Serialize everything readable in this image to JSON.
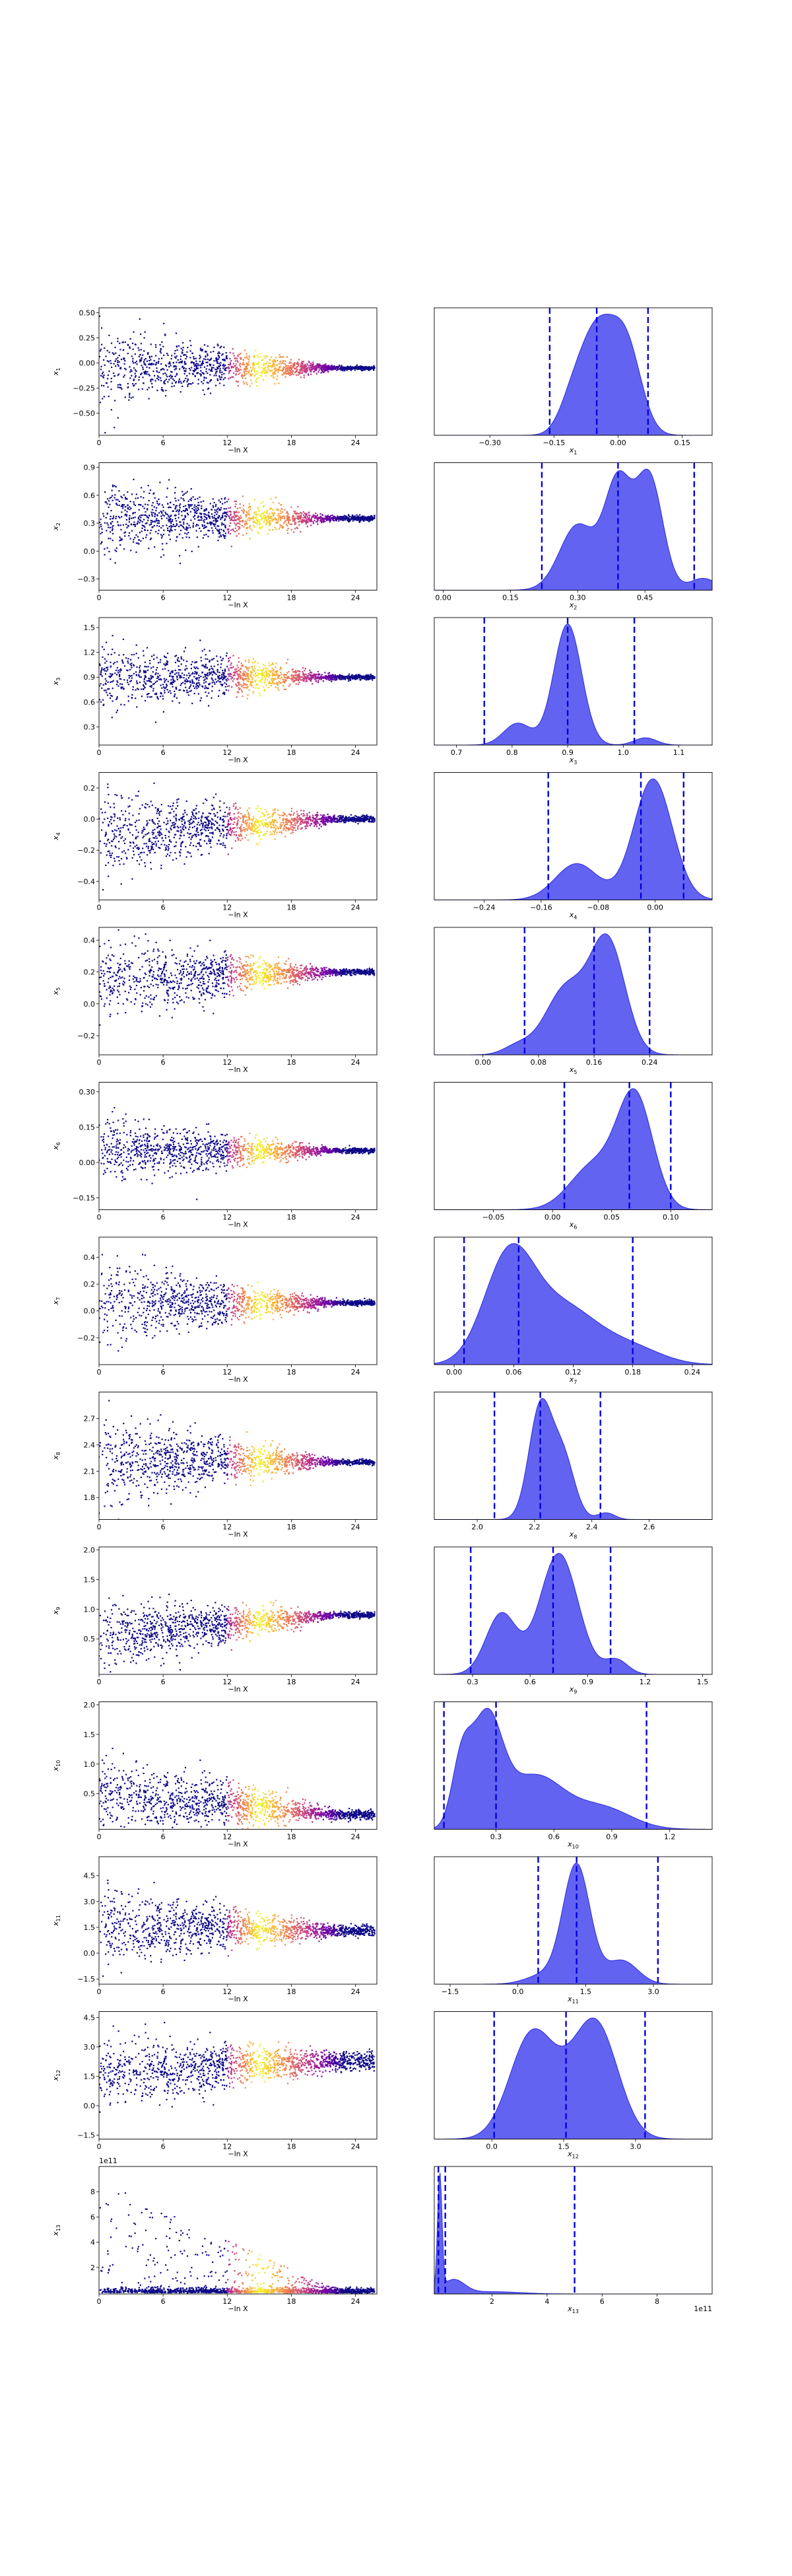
{
  "figure": {
    "scatter_xlabel": "−ln X",
    "colormap": [
      "#0d0887",
      "#6a00a8",
      "#b12a90",
      "#e16462",
      "#fca636",
      "#f0f921"
    ],
    "density_color": "#5b5bf0",
    "density_edge": "#2a2ae0",
    "quantile_color": "#0000dd"
  },
  "chart_data": [
    {
      "type": "scatter+density",
      "param": "x1",
      "ylabel_sub": "1",
      "xlabel_sub": "1",
      "scatter": {
        "xlim": [
          0,
          26
        ],
        "ylim": [
          -0.72,
          0.55
        ],
        "xticks": [
          "0",
          "6",
          "12",
          "18",
          "24"
        ],
        "yticks": [
          0.5,
          0.25,
          0.0,
          -0.25,
          -0.5
        ],
        "ytick_labels": [
          "0.50",
          "0.25",
          "0.00",
          "−0.25",
          "−0.50"
        ],
        "center": -0.05,
        "spread_start": 0.38,
        "spread_end": 0.02,
        "bias_start": 0.0
      },
      "density": {
        "xlim": [
          -0.43,
          0.22
        ],
        "xticks": [
          -0.3,
          -0.15,
          0.0,
          0.15
        ],
        "xtick_labels": [
          "−0.30",
          "−0.15",
          "0.00",
          "0.15"
        ],
        "components": [
          [
            -0.05,
            0.04,
            1.0
          ],
          [
            0.02,
            0.035,
            0.82
          ],
          [
            -0.11,
            0.03,
            0.25
          ]
        ],
        "quantiles": [
          -0.16,
          -0.05,
          0.07
        ]
      }
    },
    {
      "type": "scatter+density",
      "param": "x2",
      "ylabel_sub": "2",
      "xlabel_sub": "2",
      "scatter": {
        "xlim": [
          0,
          26
        ],
        "ylim": [
          -0.42,
          0.95
        ],
        "xticks": [
          "0",
          "6",
          "12",
          "18",
          "24"
        ],
        "yticks": [
          0.9,
          0.6,
          0.3,
          0.0,
          -0.3
        ],
        "ytick_labels": [
          "0.9",
          "0.6",
          "0.3",
          "0.0",
          "−0.3"
        ],
        "center": 0.35,
        "spread_start": 0.42,
        "spread_end": 0.03,
        "bias_start": 0.0
      },
      "density": {
        "xlim": [
          -0.02,
          0.6
        ],
        "xticks": [
          0.0,
          0.15,
          0.3,
          0.45
        ],
        "xtick_labels": [
          "0.00",
          "0.15",
          "0.30",
          "0.45"
        ],
        "components": [
          [
            0.3,
            0.04,
            0.55
          ],
          [
            0.39,
            0.03,
            0.9
          ],
          [
            0.46,
            0.03,
            0.95
          ],
          [
            0.58,
            0.03,
            0.1
          ]
        ],
        "quantiles": [
          0.22,
          0.39,
          0.56
        ]
      }
    },
    {
      "type": "scatter+density",
      "param": "x3",
      "ylabel_sub": "3",
      "xlabel_sub": "3",
      "scatter": {
        "xlim": [
          0,
          26
        ],
        "ylim": [
          0.08,
          1.62
        ],
        "xticks": [
          "0",
          "6",
          "12",
          "18",
          "24"
        ],
        "yticks": [
          1.5,
          1.2,
          0.9,
          0.6,
          0.3
        ],
        "ytick_labels": [
          "1.5",
          "1.2",
          "0.9",
          "0.6",
          "0.3"
        ],
        "center": 0.9,
        "spread_start": 0.45,
        "spread_end": 0.03,
        "bias_start": 0.0
      },
      "density": {
        "xlim": [
          0.66,
          1.16
        ],
        "xticks": [
          0.7,
          0.8,
          0.9,
          1.0,
          1.1
        ],
        "xtick_labels": [
          "0.7",
          "0.8",
          "0.9",
          "1.0",
          "1.1"
        ],
        "components": [
          [
            0.9,
            0.025,
            1.0
          ],
          [
            0.81,
            0.025,
            0.18
          ],
          [
            1.04,
            0.02,
            0.06
          ]
        ],
        "quantiles": [
          0.75,
          0.9,
          1.02
        ]
      }
    },
    {
      "type": "scatter+density",
      "param": "x4",
      "ylabel_sub": "4",
      "xlabel_sub": "4",
      "scatter": {
        "xlim": [
          0,
          26
        ],
        "ylim": [
          -0.52,
          0.3
        ],
        "xticks": [
          "0",
          "6",
          "12",
          "18",
          "24"
        ],
        "yticks": [
          0.2,
          0.0,
          -0.2,
          -0.4
        ],
        "ytick_labels": [
          "0.2",
          "0.0",
          "−0.2",
          "−0.4"
        ],
        "center": 0.0,
        "spread_start": 0.28,
        "spread_end": 0.02,
        "bias_start": -0.1
      },
      "density": {
        "xlim": [
          -0.31,
          0.08
        ],
        "xticks": [
          -0.24,
          -0.16,
          -0.08,
          0.0
        ],
        "xtick_labels": [
          "−0.24",
          "−0.16",
          "−0.08",
          "0.00"
        ],
        "components": [
          [
            -0.003,
            0.027,
            1.0
          ],
          [
            -0.11,
            0.03,
            0.3
          ]
        ],
        "quantiles": [
          -0.15,
          -0.02,
          0.04
        ]
      }
    },
    {
      "type": "scatter+density",
      "param": "x5",
      "ylabel_sub": "5",
      "xlabel_sub": "5",
      "scatter": {
        "xlim": [
          0,
          26
        ],
        "ylim": [
          -0.32,
          0.48
        ],
        "xticks": [
          "0",
          "6",
          "12",
          "18",
          "24"
        ],
        "yticks": [
          0.4,
          0.2,
          0.0,
          -0.2
        ],
        "ytick_labels": [
          "0.4",
          "0.2",
          "0.0",
          "−0.2"
        ],
        "center": 0.2,
        "spread_start": 0.25,
        "spread_end": 0.02,
        "bias_start": -0.05
      },
      "density": {
        "xlim": [
          -0.07,
          0.33
        ],
        "xticks": [
          0.0,
          0.08,
          0.16,
          0.24
        ],
        "xtick_labels": [
          "0.00",
          "0.08",
          "0.16",
          "0.24"
        ],
        "components": [
          [
            0.18,
            0.025,
            1.0
          ],
          [
            0.12,
            0.03,
            0.6
          ],
          [
            0.05,
            0.02,
            0.08
          ]
        ],
        "quantiles": [
          0.06,
          0.16,
          0.24
        ]
      }
    },
    {
      "type": "scatter+density",
      "param": "x6",
      "ylabel_sub": "6",
      "xlabel_sub": "6",
      "scatter": {
        "xlim": [
          0,
          26
        ],
        "ylim": [
          -0.2,
          0.34
        ],
        "xticks": [
          "0",
          "6",
          "12",
          "18",
          "24"
        ],
        "yticks": [
          0.3,
          0.15,
          0.0,
          -0.15
        ],
        "ytick_labels": [
          "0.30",
          "0.15",
          "0.00",
          "−0.15"
        ],
        "center": 0.05,
        "spread_start": 0.14,
        "spread_end": 0.01,
        "bias_start": 0.0
      },
      "density": {
        "xlim": [
          -0.1,
          0.135
        ],
        "xticks": [
          -0.05,
          0.0,
          0.05,
          0.1
        ],
        "xtick_labels": [
          "−0.05",
          "0.00",
          "0.05",
          "0.10"
        ],
        "components": [
          [
            0.07,
            0.015,
            1.0
          ],
          [
            0.035,
            0.02,
            0.4
          ]
        ],
        "quantiles": [
          0.01,
          0.065,
          0.1
        ]
      }
    },
    {
      "type": "scatter+density",
      "param": "x7",
      "ylabel_sub": "7",
      "xlabel_sub": "7",
      "scatter": {
        "xlim": [
          0,
          26
        ],
        "ylim": [
          -0.4,
          0.55
        ],
        "xticks": [
          "0",
          "6",
          "12",
          "18",
          "24"
        ],
        "yticks": [
          0.4,
          0.2,
          0.0,
          -0.2
        ],
        "ytick_labels": [
          "0.4",
          "0.2",
          "0.0",
          "−0.2"
        ],
        "center": 0.06,
        "spread_start": 0.3,
        "spread_end": 0.02,
        "bias_start": 0.0
      },
      "density": {
        "xlim": [
          -0.02,
          0.26
        ],
        "xticks": [
          0.0,
          0.06,
          0.12,
          0.18,
          0.24
        ],
        "xtick_labels": [
          "0.00",
          "0.06",
          "0.12",
          "0.18",
          "0.24"
        ],
        "components": [
          [
            0.055,
            0.025,
            1.0
          ],
          [
            0.11,
            0.035,
            0.55
          ],
          [
            0.18,
            0.03,
            0.15
          ]
        ],
        "quantiles": [
          0.01,
          0.065,
          0.18
        ]
      }
    },
    {
      "type": "scatter+density",
      "param": "x8",
      "ylabel_sub": "8",
      "xlabel_sub": "8",
      "scatter": {
        "xlim": [
          0,
          26
        ],
        "ylim": [
          1.55,
          3.0
        ],
        "xticks": [
          "0",
          "6",
          "12",
          "18",
          "24"
        ],
        "yticks": [
          2.7,
          2.4,
          2.1,
          1.8
        ],
        "ytick_labels": [
          "2.7",
          "2.4",
          "2.1",
          "1.8"
        ],
        "center": 2.2,
        "spread_start": 0.5,
        "spread_end": 0.03,
        "bias_start": 0.05
      },
      "density": {
        "xlim": [
          1.85,
          2.82
        ],
        "xticks": [
          2.0,
          2.2,
          2.4,
          2.6
        ],
        "xtick_labels": [
          "2.0",
          "2.2",
          "2.4",
          "2.6"
        ],
        "components": [
          [
            2.22,
            0.04,
            1.0
          ],
          [
            2.3,
            0.04,
            0.55
          ],
          [
            2.45,
            0.03,
            0.06
          ]
        ],
        "quantiles": [
          2.06,
          2.22,
          2.43
        ]
      }
    },
    {
      "type": "scatter+density",
      "param": "x9",
      "ylabel_sub": "9",
      "xlabel_sub": "9",
      "scatter": {
        "xlim": [
          0,
          26
        ],
        "ylim": [
          -0.1,
          2.05
        ],
        "xticks": [
          "0",
          "6",
          "12",
          "18",
          "24"
        ],
        "yticks": [
          2.0,
          1.5,
          1.0,
          0.5
        ],
        "ytick_labels": [
          "2.0",
          "1.5",
          "1.0",
          "0.5"
        ],
        "center": 0.9,
        "spread_start": 0.6,
        "spread_end": 0.05,
        "bias_start": -0.35
      },
      "density": {
        "xlim": [
          0.1,
          1.55
        ],
        "xticks": [
          0.3,
          0.6,
          0.9,
          1.2,
          1.5
        ],
        "xtick_labels": [
          "0.3",
          "0.6",
          "0.9",
          "1.2",
          "1.5"
        ],
        "components": [
          [
            0.75,
            0.1,
            1.0
          ],
          [
            0.45,
            0.08,
            0.5
          ],
          [
            1.05,
            0.06,
            0.12
          ]
        ],
        "quantiles": [
          0.29,
          0.72,
          1.02
        ]
      }
    },
    {
      "type": "scatter+density",
      "param": "x10",
      "ylabel_sub": "10",
      "xlabel_sub": "10",
      "scatter": {
        "xlim": [
          0,
          26
        ],
        "ylim": [
          -0.1,
          2.05
        ],
        "xticks": [
          "0",
          "6",
          "12",
          "18",
          "24"
        ],
        "yticks": [
          2.0,
          1.5,
          1.0,
          0.5
        ],
        "ytick_labels": [
          "2.0",
          "1.5",
          "1.0",
          "0.5"
        ],
        "center": 0.15,
        "spread_start": 0.7,
        "spread_end": 0.08,
        "bias_start": 0.35
      },
      "density": {
        "xlim": [
          -0.02,
          1.42
        ],
        "xticks": [
          0.3,
          0.6,
          0.9,
          1.2
        ],
        "xtick_labels": [
          "0.3",
          "0.6",
          "0.9",
          "1.2"
        ],
        "components": [
          [
            0.25,
            0.08,
            1.0
          ],
          [
            0.12,
            0.05,
            0.55
          ],
          [
            0.5,
            0.15,
            0.5
          ],
          [
            0.85,
            0.15,
            0.2
          ]
        ],
        "quantiles": [
          0.03,
          0.3,
          1.08
        ]
      }
    },
    {
      "type": "scatter+density",
      "param": "x11",
      "ylabel_sub": "11",
      "xlabel_sub": "11",
      "scatter": {
        "xlim": [
          0,
          26
        ],
        "ylim": [
          -1.8,
          5.6
        ],
        "xticks": [
          "0",
          "6",
          "12",
          "18",
          "24"
        ],
        "yticks": [
          4.5,
          3.0,
          1.5,
          0.0,
          -1.5
        ],
        "ytick_labels": [
          "4.5",
          "3.0",
          "1.5",
          "0.0",
          "−1.5"
        ],
        "center": 1.3,
        "spread_start": 2.3,
        "spread_end": 0.3,
        "bias_start": 0.3
      },
      "density": {
        "xlim": [
          -1.85,
          4.3
        ],
        "xticks": [
          -1.5,
          0.0,
          1.5,
          3.0
        ],
        "xtick_labels": [
          "−1.5",
          "0.0",
          "1.5",
          "3.0"
        ],
        "components": [
          [
            1.3,
            0.3,
            1.0
          ],
          [
            2.3,
            0.35,
            0.2
          ],
          [
            0.6,
            0.4,
            0.08
          ]
        ],
        "quantiles": [
          0.45,
          1.3,
          3.1
        ]
      }
    },
    {
      "type": "scatter+density",
      "param": "x12",
      "ylabel_sub": "12",
      "xlabel_sub": "12",
      "scatter": {
        "xlim": [
          0,
          26
        ],
        "ylim": [
          -1.7,
          4.8
        ],
        "xticks": [
          "0",
          "6",
          "12",
          "18",
          "24"
        ],
        "yticks": [
          4.5,
          3.0,
          1.5,
          0.0,
          -1.5
        ],
        "ytick_labels": [
          "4.5",
          "3.0",
          "1.5",
          "0.0",
          "−1.5"
        ],
        "center": 2.3,
        "spread_start": 1.7,
        "spread_end": 0.5,
        "bias_start": -0.7
      },
      "density": {
        "xlim": [
          -1.2,
          4.6
        ],
        "xticks": [
          0.0,
          1.5,
          3.0
        ],
        "xtick_labels": [
          "0.0",
          "1.5",
          "3.0"
        ],
        "components": [
          [
            0.8,
            0.45,
            0.85
          ],
          [
            2.2,
            0.45,
            0.95
          ],
          [
            1.5,
            0.5,
            0.3
          ]
        ],
        "quantiles": [
          0.05,
          1.55,
          3.2
        ]
      }
    },
    {
      "type": "scatter+density",
      "param": "x13",
      "ylabel_sub": "13",
      "xlabel_sub": "13",
      "scatter": {
        "xlim": [
          0,
          26
        ],
        "ylim": [
          -0.1,
          10.0
        ],
        "xticks": [
          "0",
          "6",
          "12",
          "18",
          "24"
        ],
        "yticks": [
          8,
          6,
          4,
          2
        ],
        "ytick_labels": [
          "8",
          "6",
          "4",
          "2"
        ],
        "offset_text": "1e11",
        "center": 0.3,
        "spread_start": 9.0,
        "spread_end": 0.4,
        "bias_start": 0.0,
        "skewed": true
      },
      "density": {
        "xlim": [
          -0.1,
          10.0
        ],
        "xticks": [
          2,
          4,
          6,
          8
        ],
        "xtick_labels": [
          "2",
          "4",
          "6",
          "8"
        ],
        "offset_text": "1e11",
        "components": [
          [
            0.1,
            0.08,
            1.0
          ],
          [
            0.6,
            0.4,
            0.12
          ],
          [
            2.0,
            1.0,
            0.02
          ]
        ],
        "quantiles": [
          0.05,
          0.3,
          5.0
        ]
      }
    }
  ]
}
